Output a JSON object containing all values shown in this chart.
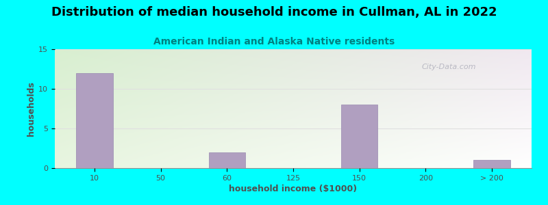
{
  "title": "Distribution of median household income in Cullman, AL in 2022",
  "subtitle": "American Indian and Alaska Native residents",
  "xlabel": "household income ($1000)",
  "ylabel": "households",
  "background_color": "#00FFFF",
  "plot_bg_color_topleft": "#d8efd0",
  "plot_bg_color_topright": "#f0e8f0",
  "plot_bg_color_bottomleft": "#e8f5e0",
  "plot_bg_color_bottomright": "#ffffff",
  "bar_color": "#b09fc0",
  "bar_edge_color": "#9888b0",
  "categories": [
    "10",
    "50",
    "60",
    "125",
    "150",
    "200",
    "> 200"
  ],
  "values": [
    12,
    0,
    2,
    0,
    8,
    0,
    1
  ],
  "bar_positions": [
    0,
    1,
    2,
    3,
    4,
    5,
    6
  ],
  "ylim": [
    0,
    15
  ],
  "yticks": [
    0,
    5,
    10,
    15
  ],
  "title_fontsize": 13,
  "subtitle_fontsize": 10,
  "subtitle_color": "#008080",
  "axis_label_fontsize": 9,
  "tick_fontsize": 8,
  "title_color": "#000000",
  "tick_color": "#505050",
  "watermark_text": "City-Data.com",
  "watermark_color": "#b0b0bc",
  "grid_color": "#e0e0e0",
  "grid_linewidth": 0.8
}
